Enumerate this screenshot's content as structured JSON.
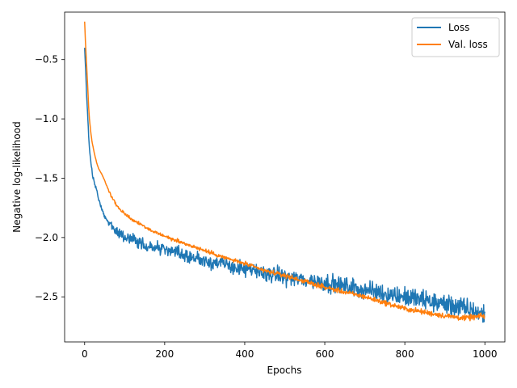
{
  "chart_data": {
    "type": "line",
    "title": "",
    "xlabel": "Epochs",
    "ylabel": "Negative log-likelihood",
    "xlim": [
      -50,
      1050
    ],
    "ylim": [
      -2.88,
      -0.1
    ],
    "xticks": [
      0,
      200,
      400,
      600,
      800,
      1000
    ],
    "yticks": [
      -0.5,
      -1.0,
      -1.5,
      -2.0,
      -2.5
    ],
    "xtick_labels": [
      "0",
      "200",
      "400",
      "600",
      "800",
      "1000"
    ],
    "ytick_labels": [
      "−0.5",
      "−1.0",
      "−1.5",
      "−2.0",
      "−2.5"
    ],
    "grid": false,
    "legend_position": "top-right",
    "series": [
      {
        "name": "Loss",
        "color": "#1f77b4",
        "noise": 0.045,
        "x": [
          0,
          2,
          5,
          8,
          10,
          12,
          15,
          18,
          20,
          25,
          30,
          35,
          40,
          45,
          50,
          55,
          60,
          65,
          70,
          75,
          80,
          90,
          100,
          120,
          140,
          160,
          180,
          200,
          250,
          300,
          350,
          400,
          450,
          500,
          550,
          600,
          650,
          700,
          750,
          800,
          850,
          900,
          950,
          1000
        ],
        "values": [
          -0.4,
          -0.55,
          -0.8,
          -1.0,
          -1.15,
          -1.25,
          -1.35,
          -1.42,
          -1.48,
          -1.55,
          -1.6,
          -1.68,
          -1.73,
          -1.78,
          -1.82,
          -1.85,
          -1.88,
          -1.9,
          -1.92,
          -1.93,
          -1.95,
          -1.97,
          -1.99,
          -2.02,
          -2.05,
          -2.07,
          -2.09,
          -2.1,
          -2.15,
          -2.19,
          -2.23,
          -2.27,
          -2.3,
          -2.33,
          -2.36,
          -2.38,
          -2.41,
          -2.44,
          -2.47,
          -2.5,
          -2.53,
          -2.56,
          -2.6,
          -2.65
        ]
      },
      {
        "name": "Val. loss",
        "color": "#ff7f0e",
        "noise": 0.012,
        "x": [
          0,
          2,
          5,
          8,
          10,
          12,
          15,
          18,
          20,
          25,
          30,
          35,
          40,
          45,
          50,
          55,
          60,
          70,
          80,
          90,
          100,
          120,
          140,
          160,
          180,
          200,
          250,
          300,
          350,
          400,
          450,
          500,
          550,
          600,
          650,
          700,
          750,
          800,
          850,
          900,
          950,
          1000
        ],
        "values": [
          -0.18,
          -0.35,
          -0.55,
          -0.75,
          -0.9,
          -1.0,
          -1.1,
          -1.18,
          -1.22,
          -1.3,
          -1.37,
          -1.42,
          -1.45,
          -1.48,
          -1.52,
          -1.56,
          -1.6,
          -1.67,
          -1.73,
          -1.77,
          -1.8,
          -1.85,
          -1.89,
          -1.93,
          -1.96,
          -1.99,
          -2.05,
          -2.11,
          -2.17,
          -2.22,
          -2.28,
          -2.32,
          -2.37,
          -2.42,
          -2.46,
          -2.5,
          -2.55,
          -2.6,
          -2.63,
          -2.66,
          -2.68,
          -2.66
        ]
      }
    ]
  }
}
